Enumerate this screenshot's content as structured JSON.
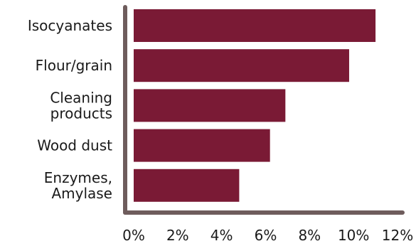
{
  "chart_data": {
    "type": "bar",
    "orientation": "horizontal",
    "categories": [
      [
        "Isocyanates"
      ],
      [
        "Flour/grain"
      ],
      [
        "Cleaning",
        "products"
      ],
      [
        "Wood dust"
      ],
      [
        "Enzymes,",
        "Amylase"
      ]
    ],
    "values": [
      11.0,
      9.8,
      6.9,
      6.2,
      4.8
    ],
    "xticks": [
      "0%",
      "2%",
      "4%",
      "6%",
      "8%",
      "10%",
      "12%"
    ],
    "xlim": [
      0,
      12
    ],
    "title": "",
    "xlabel": "",
    "ylabel": "",
    "grid": false,
    "legend": "none",
    "colors": {
      "bar": "#7a1a35",
      "axis": "#6e5c5c"
    }
  }
}
